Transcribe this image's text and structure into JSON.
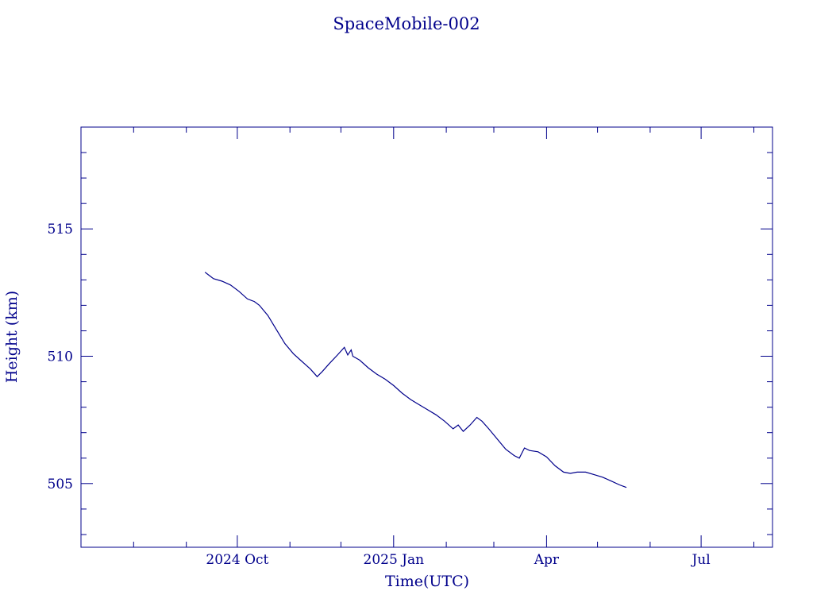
{
  "colors": {
    "ink": "#00008b",
    "background": "#ffffff"
  },
  "chart_data": {
    "type": "line",
    "title": "SpaceMobile-002",
    "xlabel": "Time(UTC)",
    "ylabel": "Height (km)",
    "x_type": "date",
    "xlim": [
      "2024-07-01",
      "2025-08-12"
    ],
    "ylim": [
      502.5,
      519.0
    ],
    "x_ticks": [
      {
        "date": "2024-10-01",
        "label": "2024 Oct"
      },
      {
        "date": "2025-01-01",
        "label": "2025 Jan"
      },
      {
        "date": "2025-04-01",
        "label": "Apr"
      },
      {
        "date": "2025-07-01",
        "label": "Jul"
      }
    ],
    "x_minor_ticks": [
      "2024-08-01",
      "2024-09-01",
      "2024-11-01",
      "2024-12-01",
      "2025-02-01",
      "2025-03-01",
      "2025-05-01",
      "2025-06-01",
      "2025-08-01"
    ],
    "y_ticks": [
      505,
      510,
      515
    ],
    "y_minor_step": 1,
    "grid": false,
    "legend": "none",
    "series": [
      {
        "points": [
          [
            "2024-09-12",
            513.3
          ],
          [
            "2024-09-14",
            513.2
          ],
          [
            "2024-09-17",
            513.05
          ],
          [
            "2024-09-22",
            512.95
          ],
          [
            "2024-09-27",
            512.8
          ],
          [
            "2024-10-02",
            512.55
          ],
          [
            "2024-10-07",
            512.25
          ],
          [
            "2024-10-11",
            512.15
          ],
          [
            "2024-10-14",
            512.0
          ],
          [
            "2024-10-19",
            511.6
          ],
          [
            "2024-10-24",
            511.05
          ],
          [
            "2024-10-29",
            510.5
          ],
          [
            "2024-11-03",
            510.1
          ],
          [
            "2024-11-08",
            509.8
          ],
          [
            "2024-11-13",
            509.5
          ],
          [
            "2024-11-17",
            509.2
          ],
          [
            "2024-11-20",
            509.4
          ],
          [
            "2024-11-24",
            509.7
          ],
          [
            "2024-11-29",
            510.05
          ],
          [
            "2024-12-03",
            510.35
          ],
          [
            "2024-12-05",
            510.05
          ],
          [
            "2024-12-07",
            510.25
          ],
          [
            "2024-12-08",
            510.0
          ],
          [
            "2024-12-12",
            509.85
          ],
          [
            "2024-12-17",
            509.55
          ],
          [
            "2024-12-22",
            509.3
          ],
          [
            "2024-12-27",
            509.1
          ],
          [
            "2025-01-01",
            508.85
          ],
          [
            "2025-01-06",
            508.55
          ],
          [
            "2025-01-11",
            508.3
          ],
          [
            "2025-01-16",
            508.1
          ],
          [
            "2025-01-21",
            507.9
          ],
          [
            "2025-01-26",
            507.7
          ],
          [
            "2025-01-31",
            507.45
          ],
          [
            "2025-02-05",
            507.15
          ],
          [
            "2025-02-08",
            507.3
          ],
          [
            "2025-02-11",
            507.05
          ],
          [
            "2025-02-15",
            507.3
          ],
          [
            "2025-02-19",
            507.6
          ],
          [
            "2025-02-22",
            507.45
          ],
          [
            "2025-02-26",
            507.15
          ],
          [
            "2025-03-03",
            506.75
          ],
          [
            "2025-03-08",
            506.35
          ],
          [
            "2025-03-13",
            506.1
          ],
          [
            "2025-03-16",
            506.0
          ],
          [
            "2025-03-19",
            506.4
          ],
          [
            "2025-03-22",
            506.3
          ],
          [
            "2025-03-27",
            506.25
          ],
          [
            "2025-04-01",
            506.05
          ],
          [
            "2025-04-06",
            505.7
          ],
          [
            "2025-04-11",
            505.45
          ],
          [
            "2025-04-15",
            505.4
          ],
          [
            "2025-04-19",
            505.45
          ],
          [
            "2025-04-24",
            505.45
          ],
          [
            "2025-04-29",
            505.35
          ],
          [
            "2025-05-04",
            505.25
          ],
          [
            "2025-05-09",
            505.1
          ],
          [
            "2025-05-14",
            504.95
          ],
          [
            "2025-05-18",
            504.85
          ]
        ]
      }
    ]
  }
}
